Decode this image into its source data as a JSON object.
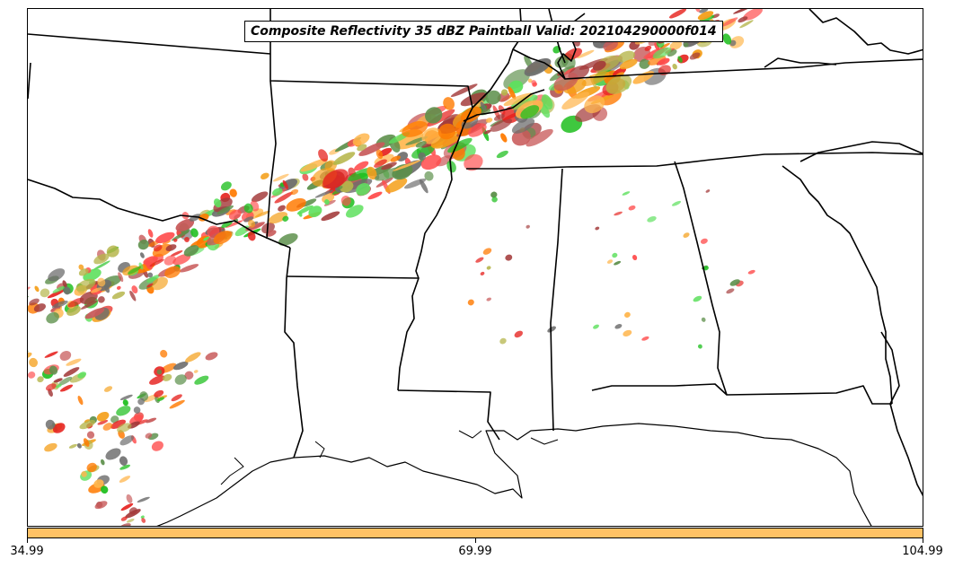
{
  "title": "Composite Reflectivity 35 dBZ Paintball Valid: 202104290000f014",
  "colorbar": {
    "color": "#ffc266",
    "ticks": [
      "34.99",
      "69.99",
      "104.99"
    ]
  },
  "paint_colors": [
    "#e6231f",
    "#ff7a00",
    "#f49f1a",
    "#ffb64d",
    "#1fbf1f",
    "#5ee05e",
    "#b5b54a",
    "#a33a3a",
    "#5c8f4a",
    "#6e6e6e",
    "#ff4d4d",
    "#c85a5a"
  ]
}
